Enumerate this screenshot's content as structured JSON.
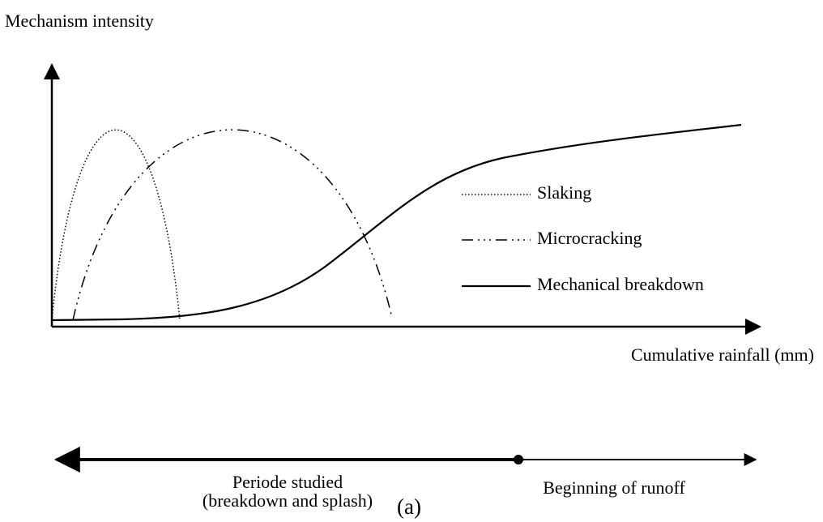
{
  "y_axis_label": "Mechanism intensity",
  "x_axis_label": "Cumulative rainfall (mm)",
  "legend": [
    "Slaking",
    "Microcracking",
    "Mechanical breakdown"
  ],
  "periods": {
    "studied": [
      "Periode studied",
      "(breakdown and splash)"
    ],
    "runoff": "Beginning of runoff"
  },
  "caption": "(a)"
}
